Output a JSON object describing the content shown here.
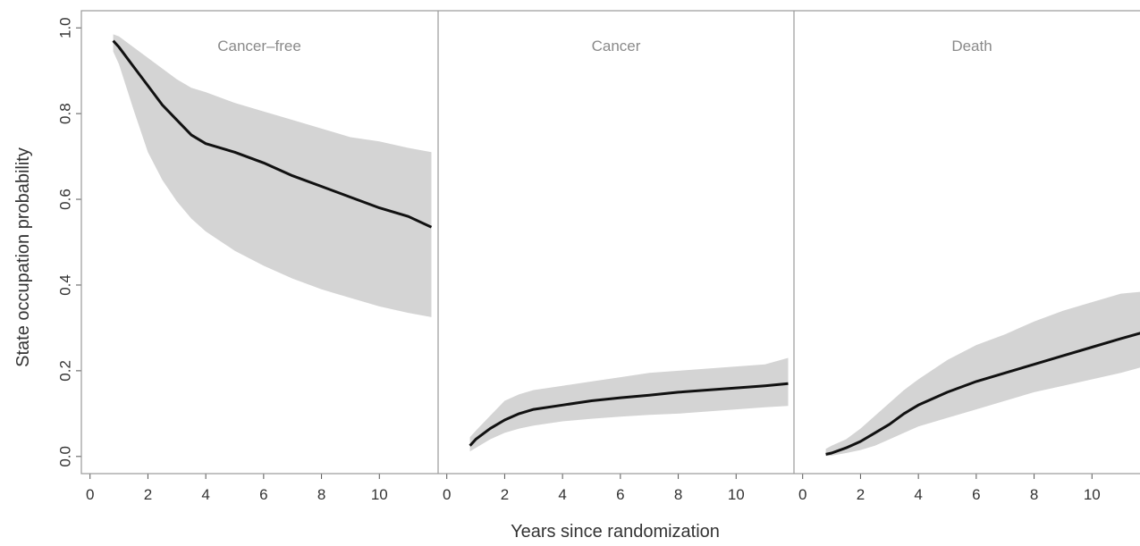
{
  "chart_data": {
    "type": "area",
    "xlabel": "Years since randomization",
    "ylabel": "State occupation probability",
    "xlim": [
      -0.3,
      12.0
    ],
    "ylim": [
      -0.04,
      1.04
    ],
    "x_ticks": [
      "0",
      "2",
      "4",
      "6",
      "8",
      "10"
    ],
    "x_tick_values": [
      0,
      2,
      4,
      6,
      8,
      10
    ],
    "y_ticks": [
      "0.0",
      "0.2",
      "0.4",
      "0.6",
      "0.8",
      "1.0"
    ],
    "y_tick_values": [
      0.0,
      0.2,
      0.4,
      0.6,
      0.8,
      1.0
    ],
    "colors": {
      "line": "#111111",
      "band": "#d4d4d4",
      "frame": "#999999"
    },
    "panels": [
      {
        "title": "Cancer–free",
        "x": [
          0.8,
          1,
          1.5,
          2,
          2.5,
          3,
          3.5,
          4,
          5,
          6,
          7,
          8,
          9,
          10,
          11,
          11.8
        ],
        "y": [
          0.97,
          0.955,
          0.91,
          0.865,
          0.82,
          0.785,
          0.75,
          0.73,
          0.71,
          0.685,
          0.655,
          0.63,
          0.605,
          0.58,
          0.56,
          0.535
        ],
        "lower": [
          0.945,
          0.915,
          0.81,
          0.71,
          0.645,
          0.595,
          0.555,
          0.525,
          0.48,
          0.445,
          0.415,
          0.39,
          0.37,
          0.35,
          0.335,
          0.325
        ],
        "upper": [
          0.985,
          0.98,
          0.955,
          0.93,
          0.905,
          0.88,
          0.86,
          0.85,
          0.825,
          0.805,
          0.785,
          0.765,
          0.745,
          0.735,
          0.72,
          0.71
        ]
      },
      {
        "title": "Cancer",
        "x": [
          0.8,
          1,
          1.5,
          2,
          2.5,
          3,
          4,
          5,
          6,
          7,
          8,
          9,
          10,
          11,
          11.8
        ],
        "y": [
          0.025,
          0.04,
          0.065,
          0.085,
          0.1,
          0.11,
          0.12,
          0.13,
          0.137,
          0.143,
          0.15,
          0.155,
          0.16,
          0.165,
          0.17
        ],
        "lower": [
          0.012,
          0.02,
          0.04,
          0.055,
          0.065,
          0.072,
          0.082,
          0.088,
          0.093,
          0.097,
          0.1,
          0.105,
          0.11,
          0.115,
          0.118
        ],
        "upper": [
          0.045,
          0.06,
          0.095,
          0.13,
          0.145,
          0.155,
          0.165,
          0.175,
          0.185,
          0.195,
          0.2,
          0.205,
          0.21,
          0.215,
          0.23
        ]
      },
      {
        "title": "Death",
        "x": [
          0.8,
          1,
          1.5,
          2,
          2.5,
          3,
          3.5,
          4,
          5,
          6,
          7,
          8,
          9,
          10,
          11,
          11.8
        ],
        "y": [
          0.005,
          0.008,
          0.02,
          0.035,
          0.055,
          0.075,
          0.1,
          0.12,
          0.15,
          0.175,
          0.195,
          0.215,
          0.235,
          0.255,
          0.275,
          0.29
        ],
        "lower": [
          0.001,
          0.002,
          0.008,
          0.015,
          0.025,
          0.04,
          0.055,
          0.07,
          0.09,
          0.11,
          0.13,
          0.15,
          0.165,
          0.18,
          0.195,
          0.21
        ],
        "upper": [
          0.018,
          0.025,
          0.04,
          0.065,
          0.095,
          0.125,
          0.155,
          0.18,
          0.225,
          0.26,
          0.285,
          0.315,
          0.34,
          0.36,
          0.38,
          0.385
        ]
      }
    ]
  }
}
